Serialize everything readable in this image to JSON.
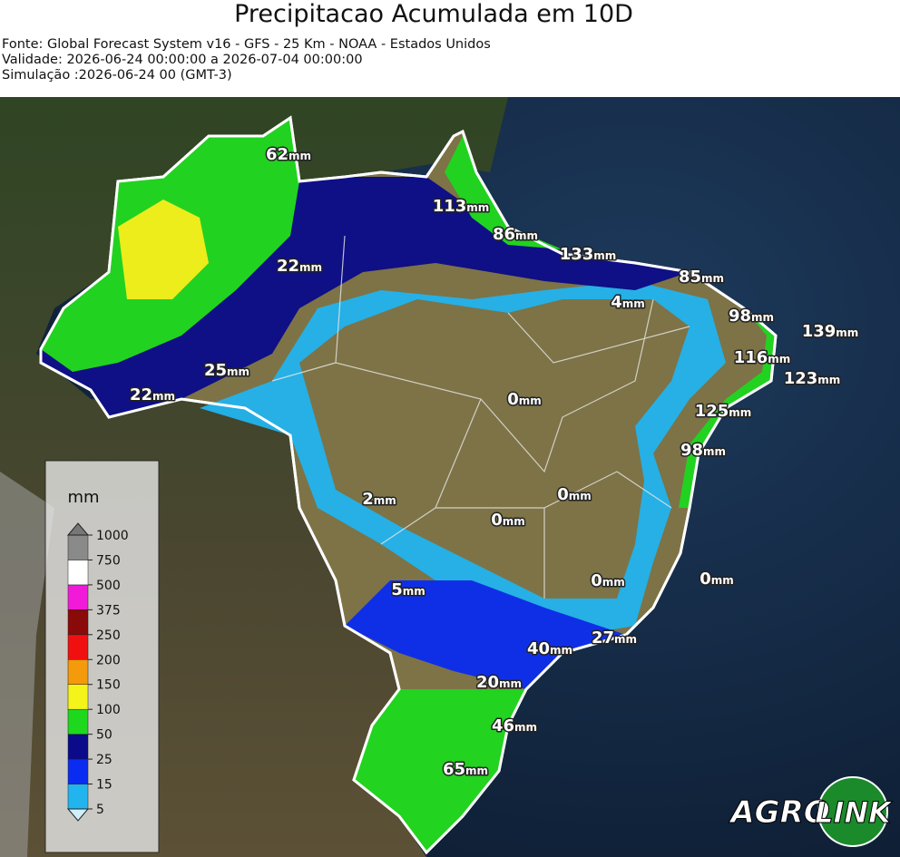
{
  "header": {
    "title": "Precipitacao Acumulada em 10D",
    "lines": [
      "Fonte: Global Forecast System v16 - GFS - 25 Km - NOAA - Estados Unidos",
      "Validade: 2026-06-24 00:00:00 a 2026-07-04 00:00:00",
      "Simulação :2026-06-24 00 (GMT-3)"
    ]
  },
  "map": {
    "unit": "mm",
    "labels": [
      62,
      113,
      86,
      133,
      22,
      85,
      4,
      98,
      139,
      116,
      25,
      123,
      22,
      0,
      125,
      98,
      2,
      0,
      0,
      5,
      0,
      0,
      27,
      40,
      20,
      46,
      65
    ]
  },
  "legend": {
    "title": "mm",
    "ticks": [
      5,
      15,
      25,
      50,
      100,
      150,
      200,
      250,
      375,
      500,
      750,
      1000
    ],
    "colors": [
      "#22b4ee",
      "#0a2cf0",
      "#0a0a8a",
      "#1ed81e",
      "#f4f41a",
      "#f59a0a",
      "#f01010",
      "#8a0a0a",
      "#f01ad8",
      "#ffffff",
      "#8a8a8a"
    ],
    "under_color": "#cfeffa",
    "over_color": "#777777"
  },
  "logo": {
    "left": "AGRO",
    "right": "LINK"
  }
}
